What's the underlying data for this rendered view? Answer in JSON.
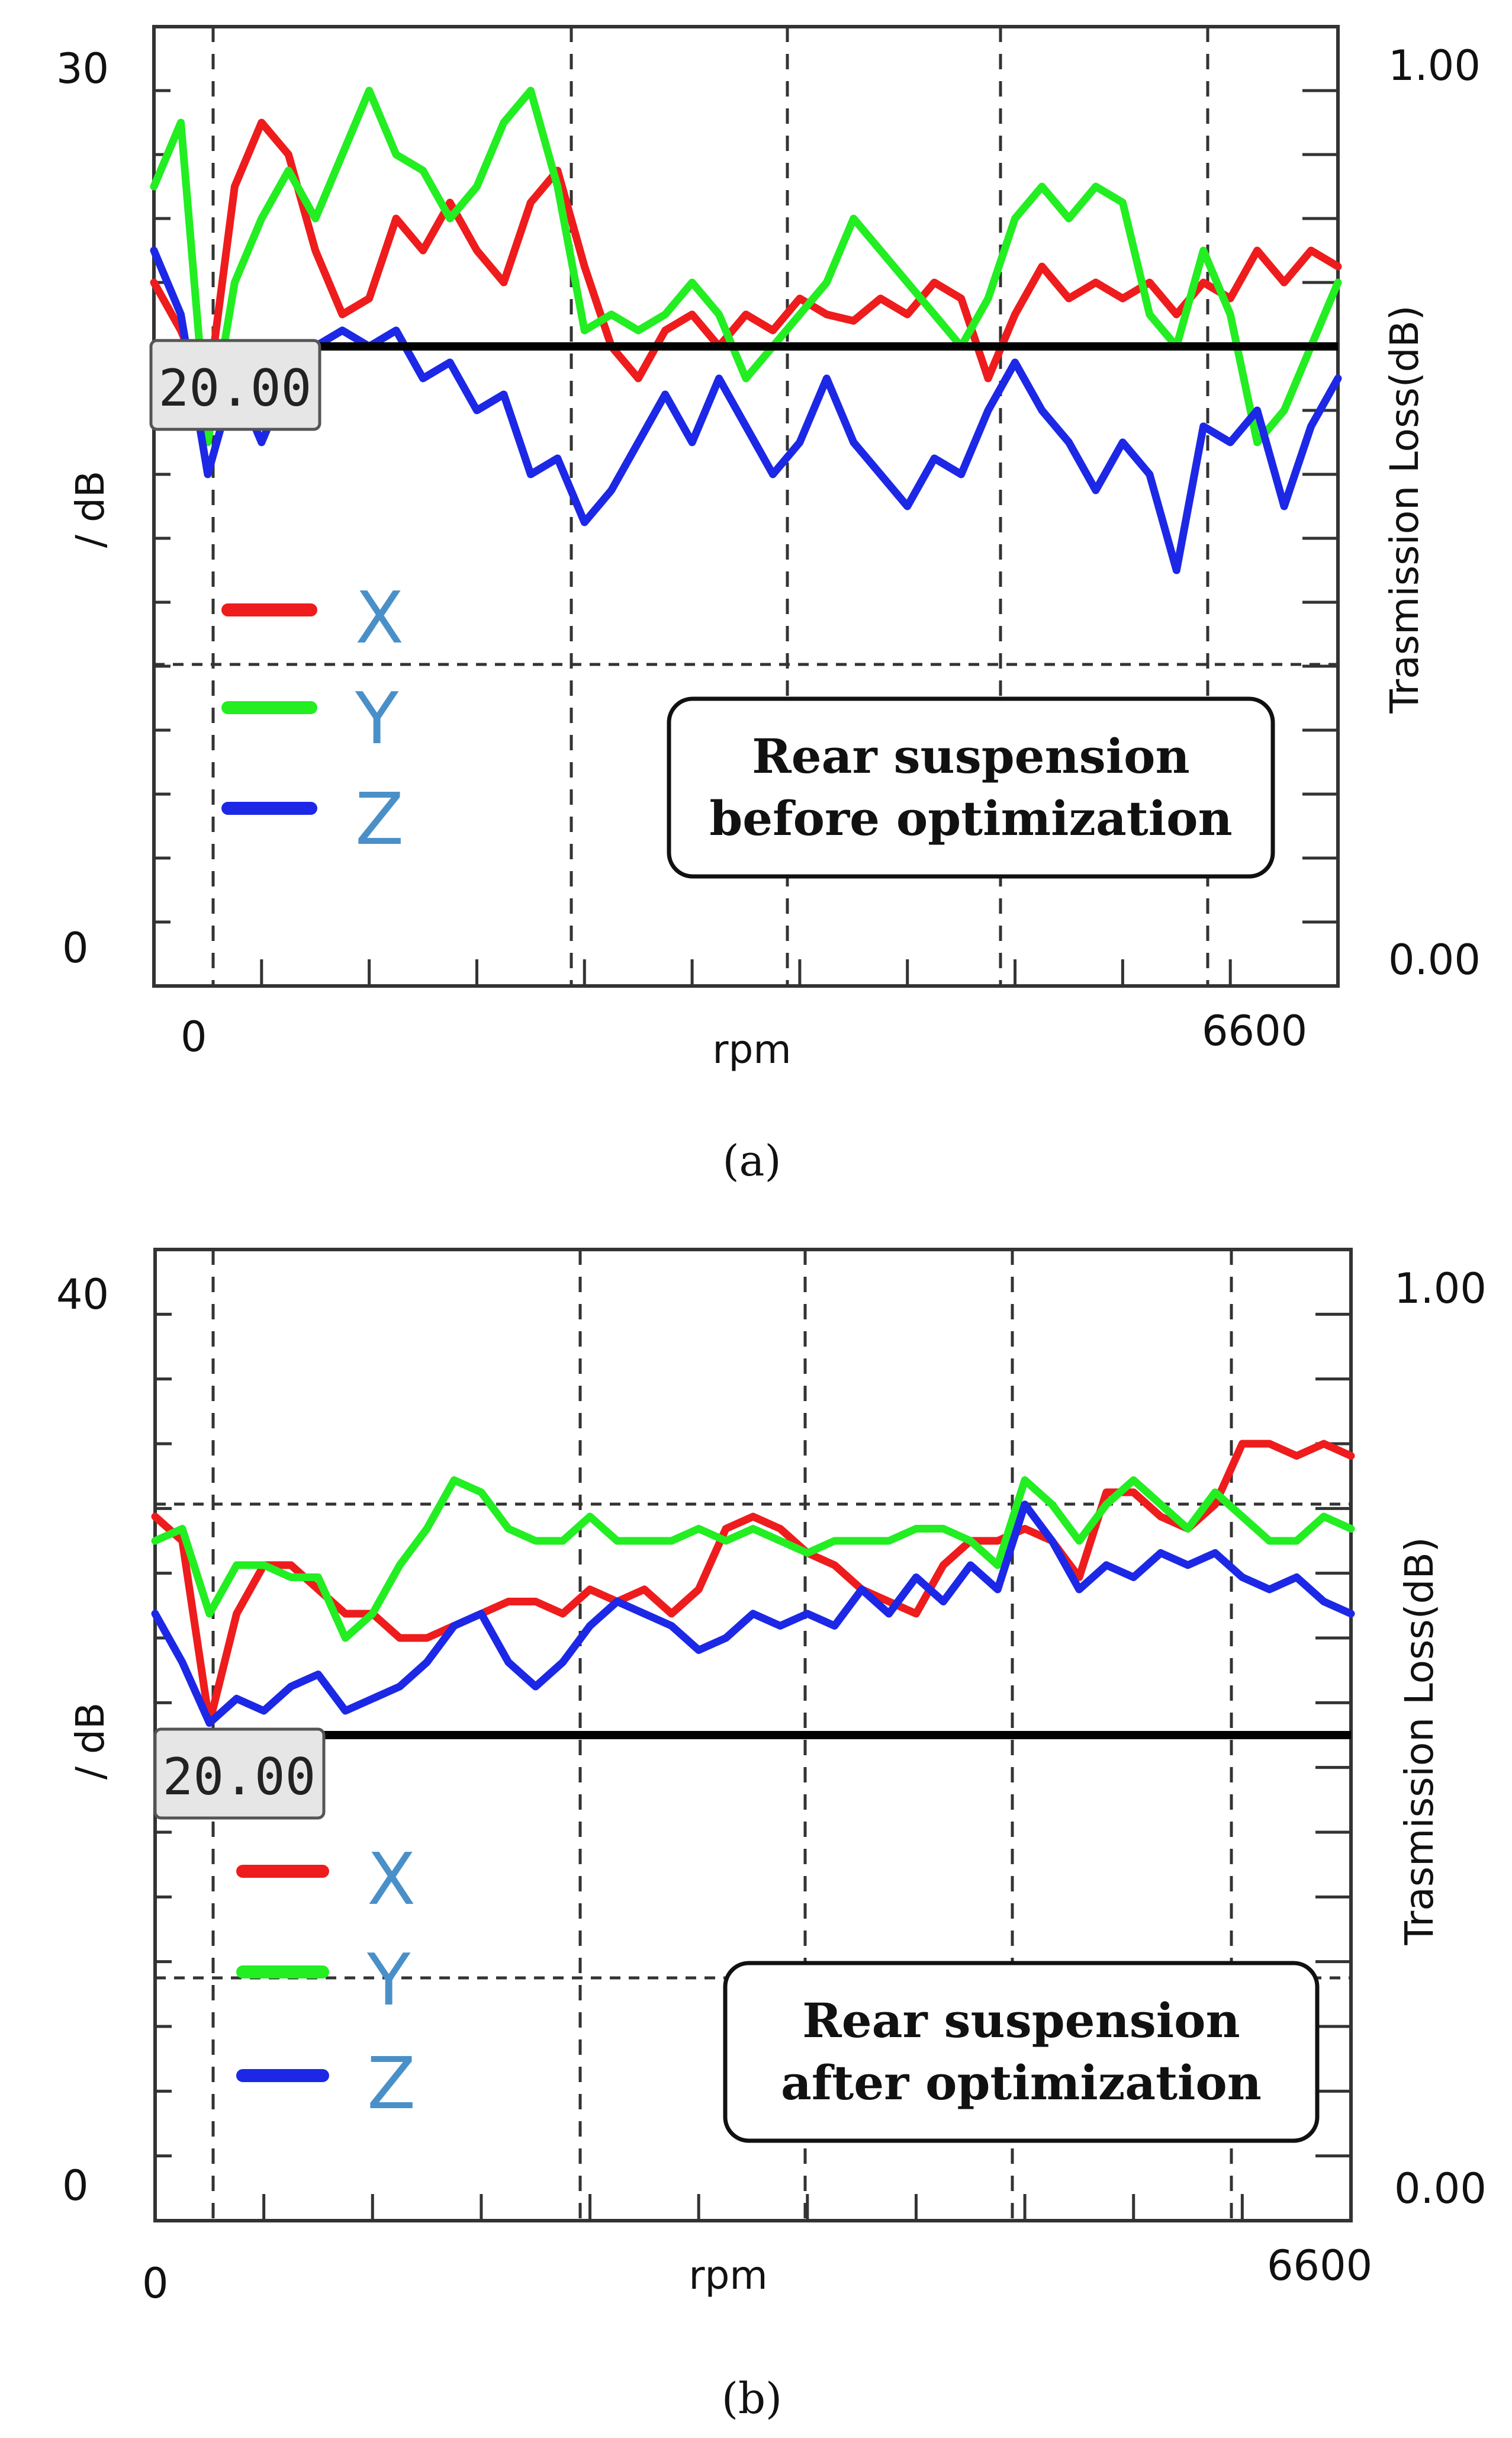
{
  "chart_data": [
    {
      "type": "line",
      "caption": "(a)",
      "annotation": [
        "Rear suspension",
        "before optimization"
      ],
      "xlabel": "rpm",
      "ylabel_left": "/ dB",
      "ylabel_right": "Trasmission Loss(dB)",
      "x_tick_labels": [
        "0",
        "6600"
      ],
      "y_left_tick_labels": [
        "30",
        "0"
      ],
      "y_right_tick_labels": [
        "1.00",
        "0.00"
      ],
      "xlim": [
        0,
        6600
      ],
      "ylim": [
        0,
        30
      ],
      "marker_label": "20.00",
      "marker_value": 20,
      "legend": [
        "X",
        "Y",
        "Z"
      ],
      "colors": {
        "X": "#ee1c1c",
        "Y": "#22ee22",
        "Z": "#1c28e6"
      },
      "x": [
        0,
        150,
        300,
        450,
        600,
        750,
        900,
        1050,
        1200,
        1350,
        1500,
        1650,
        1800,
        1950,
        2100,
        2250,
        2400,
        2550,
        2700,
        2850,
        3000,
        3150,
        3300,
        3450,
        3600,
        3750,
        3900,
        4050,
        4200,
        4350,
        4500,
        4650,
        4800,
        4950,
        5100,
        5250,
        5400,
        5550,
        5700,
        5850,
        6000,
        6150,
        6300,
        6450,
        6600
      ],
      "series": [
        {
          "name": "X",
          "values": [
            22,
            20.5,
            18.5,
            25,
            27,
            26,
            23,
            21,
            21.5,
            24,
            23,
            24.5,
            23,
            22,
            24.5,
            25.5,
            22.5,
            20,
            19,
            20.5,
            21,
            20,
            21,
            20.5,
            21.5,
            21,
            20.8,
            21.5,
            21,
            22,
            21.5,
            19,
            21,
            22.5,
            21.5,
            22,
            21.5,
            22,
            21,
            22,
            21.5,
            23,
            22,
            23,
            22.5
          ]
        },
        {
          "name": "Y",
          "values": [
            25,
            27,
            17,
            22,
            24,
            25.5,
            24,
            26,
            28,
            26,
            25.5,
            24,
            25,
            27,
            28,
            25,
            20.5,
            21,
            20.5,
            21,
            22,
            21,
            19,
            20,
            21,
            22,
            24,
            23,
            22,
            21,
            20,
            21.5,
            24,
            25,
            24,
            25,
            24.5,
            21,
            20,
            23,
            21,
            17,
            18,
            20,
            22
          ]
        },
        {
          "name": "Z",
          "values": [
            23,
            21,
            16,
            19,
            17,
            19,
            20,
            20.5,
            20,
            20.5,
            19,
            19.5,
            18,
            18.5,
            16,
            16.5,
            14.5,
            15.5,
            17,
            18.5,
            17,
            19,
            17.5,
            16,
            17,
            19,
            17,
            16,
            15,
            16.5,
            16,
            18,
            19.5,
            18,
            17,
            15.5,
            17,
            16,
            13,
            17.5,
            17,
            18,
            15,
            17.5,
            19
          ]
        }
      ]
    },
    {
      "type": "line",
      "caption": "(b)",
      "annotation": [
        "Rear suspension",
        "after optimization"
      ],
      "xlabel": "rpm",
      "ylabel_left": "/ dB",
      "ylabel_right": "Trasmission Loss(dB)",
      "x_tick_labels": [
        "0",
        "6600"
      ],
      "y_left_tick_labels": [
        "40",
        "0"
      ],
      "y_right_tick_labels": [
        "1.00",
        "0.00"
      ],
      "xlim": [
        0,
        6600
      ],
      "ylim": [
        0,
        40
      ],
      "marker_label": "20.00",
      "marker_value": 20,
      "legend": [
        "X",
        "Y",
        "Z"
      ],
      "colors": {
        "X": "#ee1c1c",
        "Y": "#22ee22",
        "Z": "#1c28e6"
      },
      "x": [
        0,
        150,
        300,
        450,
        600,
        750,
        900,
        1050,
        1200,
        1350,
        1500,
        1650,
        1800,
        1950,
        2100,
        2250,
        2400,
        2550,
        2700,
        2850,
        3000,
        3150,
        3300,
        3450,
        3600,
        3750,
        3900,
        4050,
        4200,
        4350,
        4500,
        4650,
        4800,
        4950,
        5100,
        5250,
        5400,
        5550,
        5700,
        5850,
        6000,
        6150,
        6300,
        6450,
        6600
      ],
      "series": [
        {
          "name": "X",
          "values": [
            29,
            28,
            20.5,
            25,
            27,
            27,
            26,
            25,
            25,
            24,
            24,
            24.5,
            25,
            25.5,
            25.5,
            25,
            26,
            25.5,
            26,
            25,
            26,
            28.5,
            29,
            28.5,
            27.5,
            27,
            26,
            25.5,
            25,
            27,
            28,
            28,
            28.5,
            28,
            26.5,
            30,
            30,
            29,
            28.5,
            29.5,
            32,
            32,
            31.5,
            32,
            31.5
          ]
        },
        {
          "name": "Y",
          "values": [
            28,
            28.5,
            25,
            27,
            27,
            26.5,
            26.5,
            24,
            25,
            27,
            28.5,
            30.5,
            30,
            28.5,
            28,
            28,
            29,
            28,
            28,
            28,
            28.5,
            28,
            28.5,
            28,
            27.5,
            28,
            28,
            28,
            28.5,
            28.5,
            28,
            27,
            30.5,
            29.5,
            28,
            29.5,
            30.5,
            29.5,
            28.5,
            30,
            29,
            28,
            28,
            29,
            28.5
          ]
        },
        {
          "name": "Z",
          "values": [
            25,
            23,
            20.5,
            21.5,
            21,
            22,
            22.5,
            21,
            21.5,
            22,
            23,
            24.5,
            25,
            23,
            22,
            23,
            24.5,
            25.5,
            25,
            24.5,
            23.5,
            24,
            25,
            24.5,
            25,
            24.5,
            26,
            25,
            26.5,
            25.5,
            27,
            26,
            29.5,
            28,
            26,
            27,
            26.5,
            27.5,
            27,
            27.5,
            26.5,
            26,
            26.5,
            25.5,
            25
          ]
        }
      ]
    }
  ]
}
